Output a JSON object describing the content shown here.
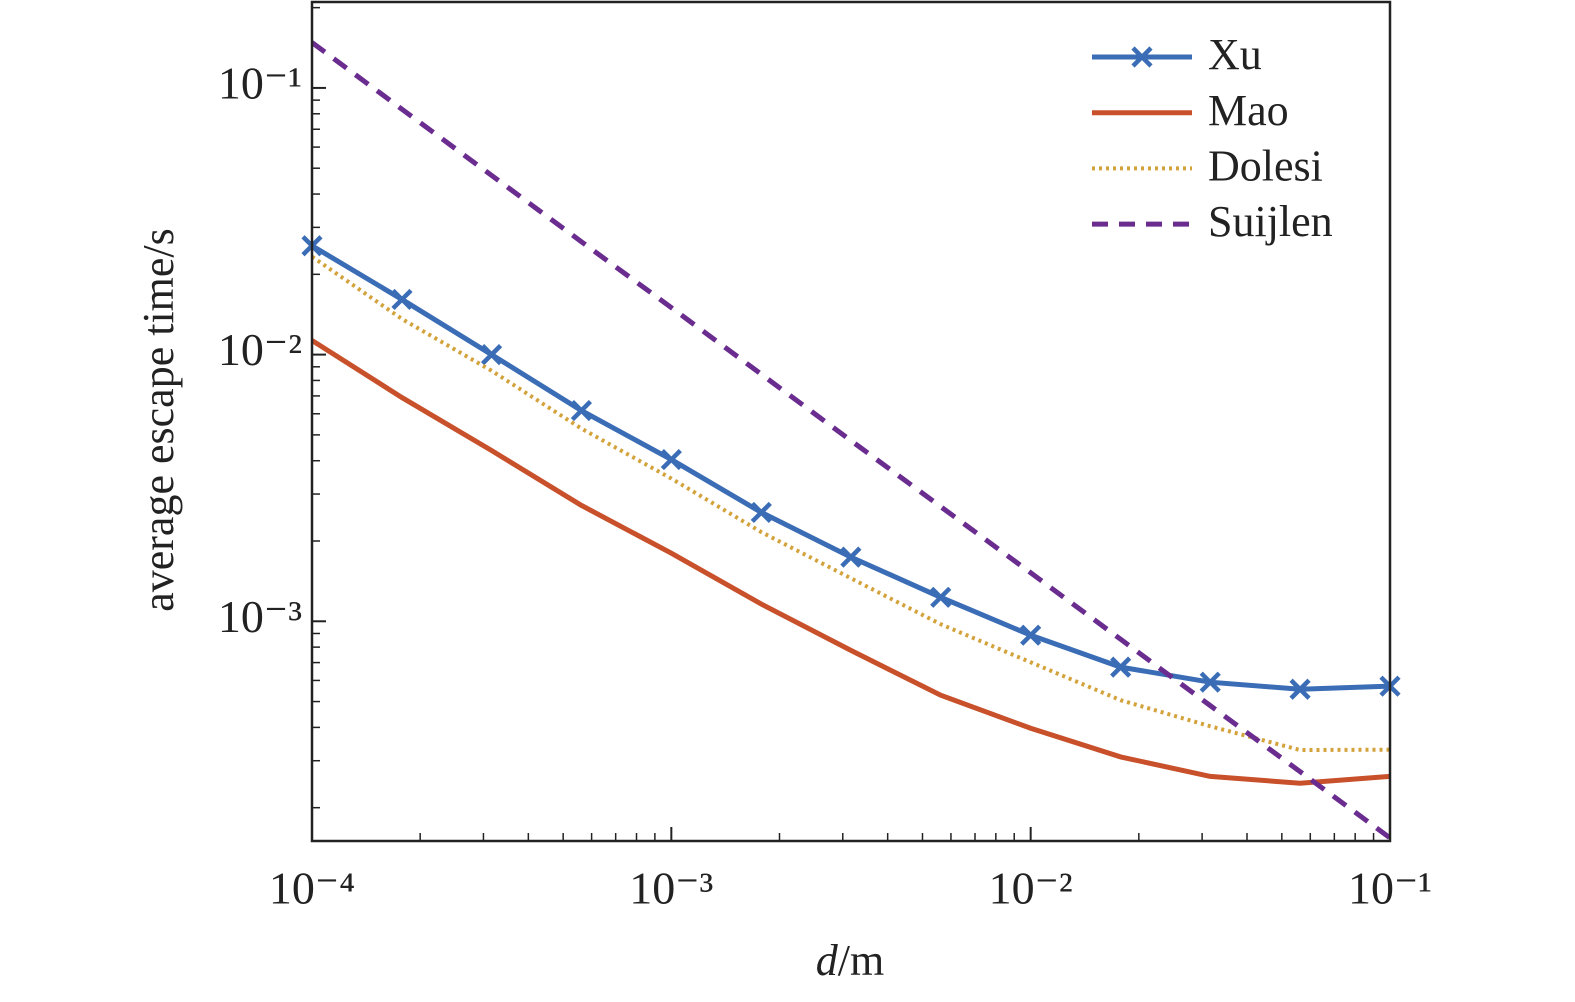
{
  "chart_data": {
    "type": "line",
    "xlabel": "d/m",
    "ylabel": "average escape time/s",
    "xscale": "log",
    "yscale": "log",
    "minor_ticks": true,
    "legend": "upper right",
    "x": [
      0.0001,
      0.000178,
      0.000316,
      0.000562,
      0.001,
      0.00178,
      0.00316,
      0.00562,
      0.01,
      0.0178,
      0.0316,
      0.0562,
      0.1
    ],
    "series": [
      {
        "name": "Xu",
        "color": "#3a6db5",
        "style": "solid",
        "marker": "x",
        "values": [
          0.0256,
          0.0161,
          0.01,
          0.00617,
          0.00404,
          0.00256,
          0.00174,
          0.00123,
          0.000887,
          0.000673,
          0.000591,
          0.000556,
          0.000571
        ]
      },
      {
        "name": "Mao",
        "color": "#c8502a",
        "style": "solid",
        "values": [
          0.0113,
          0.0069,
          0.00437,
          0.00272,
          0.0018,
          0.00116,
          0.000778,
          0.000528,
          0.000397,
          0.00031,
          0.000262,
          0.000247,
          0.000262
        ]
      },
      {
        "name": "Dolesi",
        "color": "#d4a23a",
        "style": "dotted",
        "values": [
          0.0233,
          0.0136,
          0.0087,
          0.00528,
          0.00343,
          0.00216,
          0.00145,
          0.000975,
          0.000702,
          0.000506,
          0.000404,
          0.000329,
          0.00033
        ]
      },
      {
        "name": "Suijlen",
        "color": "#6a2d8f",
        "style": "dashed",
        "values": [
          0.148,
          0.0832,
          0.047,
          0.0265,
          0.015,
          0.00844,
          0.00476,
          0.00269,
          0.00152,
          0.000856,
          0.000483,
          0.000273,
          0.000154
        ]
      }
    ],
    "xlim": [
      0.0001,
      0.1
    ],
    "ylim": [
      0.00015,
      0.21
    ],
    "xticks": [
      {
        "value": 0.0001,
        "label": "10⁻⁴"
      },
      {
        "value": 0.001,
        "label": "10⁻³"
      },
      {
        "value": 0.01,
        "label": "10⁻²"
      },
      {
        "value": 0.1,
        "label": "10⁻¹"
      }
    ],
    "yticks": [
      {
        "value": 0.001,
        "label": "10⁻³"
      },
      {
        "value": 0.01,
        "label": "10⁻²"
      },
      {
        "value": 0.1,
        "label": "10⁻¹"
      }
    ]
  }
}
